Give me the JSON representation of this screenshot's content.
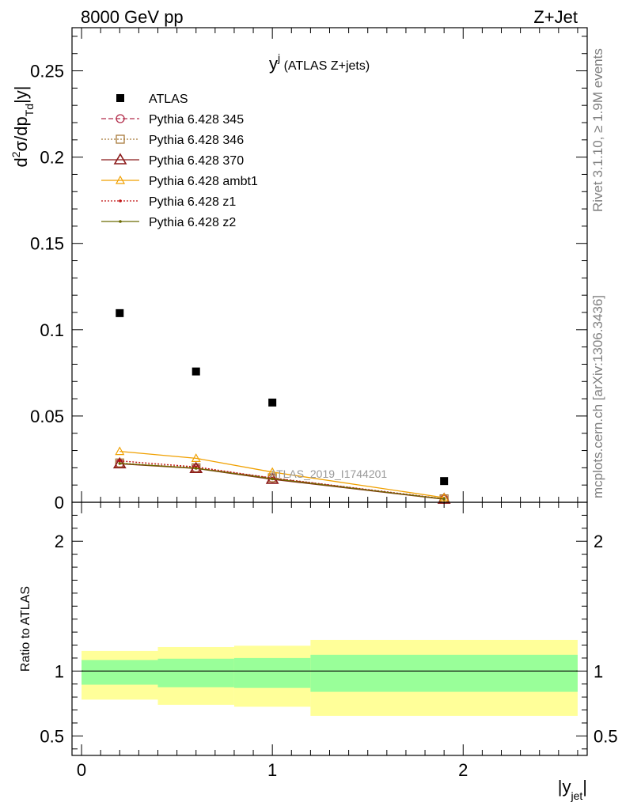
{
  "header": {
    "left": "8000 GeV pp",
    "right": "Z+Jet"
  },
  "side_text": {
    "rivet": "Rivet 3.1.10, ≥ 1.9M events",
    "mcplots": "mcplots.cern.ch [arXiv:1306.3436]"
  },
  "chart_data": [
    {
      "type": "scatter",
      "panel": "main",
      "title_main": "y",
      "title_sup": "j",
      "title_rest": " (ATLAS Z+jets)",
      "ylabel": "d²σ/dp_Td|y|",
      "ylabel_parts": {
        "a": "d",
        "a_sup": "2",
        "b": "σ/dp",
        "b_sub": "Td",
        "c": "|y|"
      },
      "watermark": "ATLAS_2019_I1744201",
      "xlim": [
        -0.05,
        2.65
      ],
      "ylim": [
        0,
        0.275
      ],
      "yticks": [
        0,
        0.05,
        0.1,
        0.15,
        0.2,
        0.25
      ],
      "ytick_labels": [
        "0",
        "0.05",
        "0.1",
        "0.15",
        "0.2",
        "0.25"
      ],
      "legend_position": "top-left",
      "x": [
        0.2,
        0.6,
        1.0,
        1.9
      ],
      "series": [
        {
          "name": "ATLAS",
          "color": "#000000",
          "style": "data",
          "values": [
            0.1096,
            0.0758,
            0.0578,
            0.0123
          ]
        },
        {
          "name": "Pythia 6.428 345",
          "color": "#b22c4a",
          "style": "dashed",
          "marker": "circle",
          "values": [
            0.0225,
            0.0198,
            0.014,
            0.0018
          ]
        },
        {
          "name": "Pythia 6.428 346",
          "color": "#a87a3a",
          "style": "dotted",
          "marker": "square",
          "values": [
            0.0228,
            0.02,
            0.0142,
            0.002
          ]
        },
        {
          "name": "Pythia 6.428 370",
          "color": "#8b1a1a",
          "style": "solid",
          "marker": "triangle",
          "values": [
            0.0223,
            0.0196,
            0.0133,
            0.0018
          ]
        },
        {
          "name": "Pythia 6.428 ambt1",
          "color": "#f0a000",
          "style": "solid",
          "marker": "triangle-small",
          "values": [
            0.0295,
            0.0255,
            0.0175,
            0.0027
          ]
        },
        {
          "name": "Pythia 6.428 z1",
          "color": "#c01010",
          "style": "dotted",
          "marker": "dot",
          "values": [
            0.024,
            0.0205,
            0.014,
            0.002
          ]
        },
        {
          "name": "Pythia 6.428 z2",
          "color": "#6b6b00",
          "style": "solid",
          "marker": "dot",
          "values": [
            0.0225,
            0.0197,
            0.0136,
            0.0019
          ]
        }
      ]
    },
    {
      "type": "area",
      "panel": "ratio",
      "ylabel": "Ratio to ATLAS",
      "xlabel": "|y_jet|",
      "xlabel_parts": {
        "a": "|y",
        "a_sub": "jet",
        "b": "|"
      },
      "xlim": [
        -0.05,
        2.65
      ],
      "ylim": [
        0.35,
        2.3
      ],
      "yticks": [
        0.5,
        1,
        2
      ],
      "ytick_labels": [
        "0.5",
        "1",
        "2"
      ],
      "xticks": [
        0,
        1,
        2
      ],
      "xtick_labels": [
        "0",
        "1",
        "2"
      ],
      "reference_line": 1,
      "bins": [
        {
          "lo": 0.0,
          "hi": 0.4,
          "inner": [
            0.895,
            1.085
          ],
          "outer": [
            0.78,
            1.155
          ]
        },
        {
          "lo": 0.4,
          "hi": 0.8,
          "inner": [
            0.875,
            1.095
          ],
          "outer": [
            0.74,
            1.185
          ]
        },
        {
          "lo": 0.8,
          "hi": 1.2,
          "inner": [
            0.87,
            1.1
          ],
          "outer": [
            0.725,
            1.195
          ]
        },
        {
          "lo": 1.2,
          "hi": 2.6,
          "inner": [
            0.84,
            1.125
          ],
          "outer": [
            0.655,
            1.24
          ]
        }
      ],
      "band_colors": {
        "inner": "#99ff99",
        "outer": "#ffff99"
      }
    }
  ]
}
